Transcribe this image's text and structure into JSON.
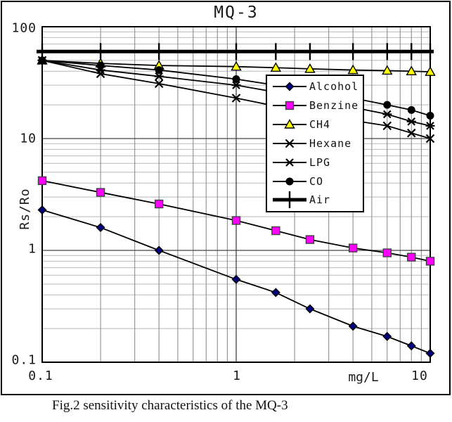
{
  "figure": {
    "title": "MQ-3",
    "caption": "Fig.2 sensitivity characteristics of the MQ-3"
  },
  "chart_data": {
    "type": "line",
    "title": "MQ-3",
    "xlabel": "mg/L",
    "ylabel": "Rs/Ro",
    "x_scale": "log",
    "y_scale": "log",
    "xlim": [
      0.1,
      10
    ],
    "ylim": [
      0.1,
      100
    ],
    "x_tick_labels": [
      "0.1",
      "1",
      "10"
    ],
    "y_tick_labels": [
      "100",
      "10",
      "1",
      "0.1"
    ],
    "x_unit_label": "mg/L",
    "grid": "log major and minor gridlines on",
    "legend_position": "middle-right inside plot",
    "x": [
      0.1,
      0.2,
      0.4,
      1,
      1.6,
      2.4,
      4,
      6,
      8,
      10
    ],
    "series": [
      {
        "name": "Alcohol",
        "marker": "diamond",
        "marker_color": "#000080",
        "line_color": "#000000",
        "values": [
          2.3,
          1.6,
          1.0,
          0.55,
          0.42,
          0.3,
          0.21,
          0.17,
          0.14,
          0.12
        ]
      },
      {
        "name": "Benzine",
        "marker": "square",
        "marker_color": "#FF00FF",
        "line_color": "#000000",
        "values": [
          4.2,
          3.3,
          2.6,
          1.85,
          1.5,
          1.25,
          1.05,
          0.95,
          0.87,
          0.8
        ]
      },
      {
        "name": "CH4",
        "marker": "triangle",
        "marker_color": "#FFFF00",
        "line_color": "#000000",
        "values": [
          50,
          47,
          45,
          44,
          43,
          42,
          41,
          40.5,
          40,
          39.5
        ]
      },
      {
        "name": "Hexane",
        "marker": "x",
        "marker_color": "#000000",
        "line_color": "#000000",
        "values": [
          50,
          38,
          31,
          23,
          19.5,
          17,
          14.5,
          13,
          11.2,
          10
        ]
      },
      {
        "name": "LPG",
        "marker": "asterisk",
        "marker_color": "#000000",
        "line_color": "#000000",
        "values": [
          50,
          41,
          36,
          30,
          26,
          22.5,
          19,
          16.5,
          14.2,
          13
        ]
      },
      {
        "name": "CO",
        "marker": "circle",
        "marker_color": "#000000",
        "line_color": "#000000",
        "values": [
          50,
          45,
          41,
          34,
          30,
          27,
          23,
          20,
          18,
          16
        ]
      },
      {
        "name": "Air",
        "marker": "tick",
        "marker_color": "#000000",
        "line_color": "#000000",
        "thick": true,
        "values": [
          60,
          60,
          60,
          60,
          60,
          60,
          60,
          60,
          60,
          60
        ]
      }
    ],
    "grid_colors": {
      "minor_h": "#b8b8b8",
      "minor_v": "#848484",
      "major": "#444444",
      "border": "#000000"
    }
  }
}
